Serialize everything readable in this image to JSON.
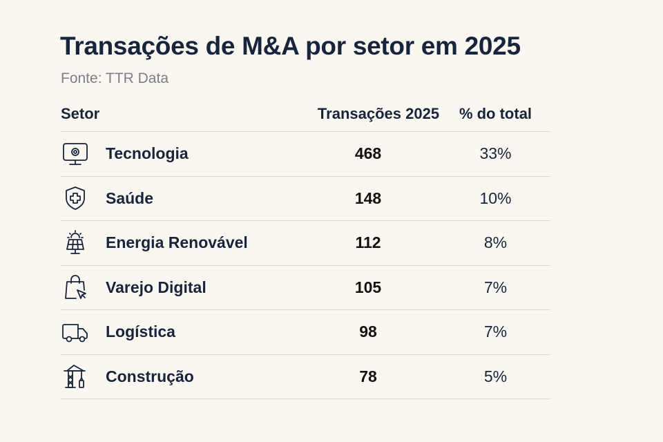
{
  "title": "Transações de M&A por setor em 2025",
  "subtitle": "Fonte: TTR Data",
  "table": {
    "headers": [
      "Setor",
      "Transações 2025",
      "% do total"
    ],
    "rows": [
      {
        "icon": "monitor-gear-icon",
        "sector": "Tecnologia",
        "transactions": "468",
        "share": "33%"
      },
      {
        "icon": "shield-plus-icon",
        "sector": "Saúde",
        "transactions": "148",
        "share": "10%"
      },
      {
        "icon": "solar-panel-icon",
        "sector": "Energia Renovável",
        "transactions": "112",
        "share": "8%"
      },
      {
        "icon": "shopping-bag-cursor-icon",
        "sector": "Varejo Digital",
        "transactions": "105",
        "share": "7%"
      },
      {
        "icon": "truck-icon",
        "sector": "Logística",
        "transactions": "98",
        "share": "7%"
      },
      {
        "icon": "crane-icon",
        "sector": "Construção",
        "transactions": "78",
        "share": "5%"
      }
    ]
  },
  "colors": {
    "background": "#faf7f0",
    "text": "#16243d",
    "divider": "#dcdad3"
  }
}
